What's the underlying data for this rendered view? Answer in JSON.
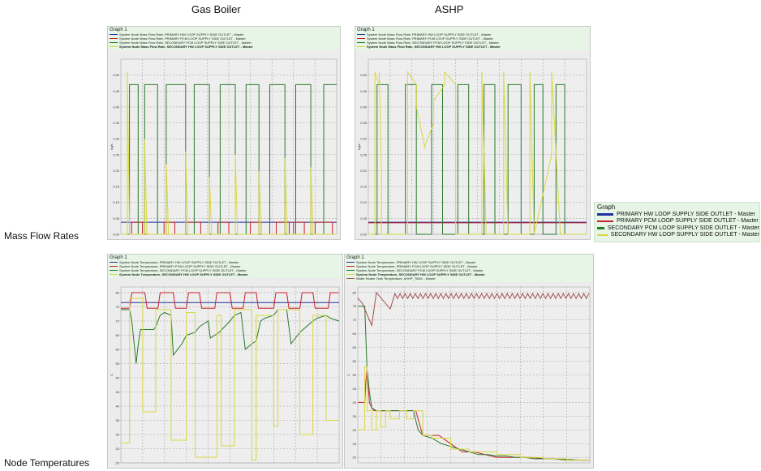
{
  "columns": [
    "Gas Boiler",
    "ASHP"
  ],
  "rows": [
    "Mass Flow Rates",
    "Node Temperatures"
  ],
  "legend": {
    "title": "Graph",
    "items": [
      {
        "label": "PRIMARY HW LOOP SUPPLY SIDE OUTLET - Master",
        "color": "#1f2fa0"
      },
      {
        "label": "PRIMARY PCM LOOP SUPPLY SIDE OUTLET - Master",
        "color": "#c8202a"
      },
      {
        "label": "SECONDARY PCM LOOP SUPPLY SIDE OUTLET - Master",
        "color": "#2a7a2a"
      },
      {
        "label": "SECONDARY HW LOOP SUPPLY SIDE OUTLET - Master",
        "color": "#d8d840"
      }
    ]
  },
  "panels": [
    {
      "title": "Graph 1",
      "legend": [
        "System Node Mass Flow Rate, PRIMARY HW LOOP SUPPLY SIDE OUTLET - Master",
        "System Node Mass Flow Rate, PRIMARY PCM LOOP SUPPLY SIDE OUTLET - Master",
        "System Node Mass Flow Rate, SECONDARY PCM LOOP SUPPLY SIDE OUTLET - Master",
        "System Node Mass Flow Rate, SECONDARY HW LOOP SUPPLY SIDE OUTLET - Master"
      ]
    },
    {
      "title": "Graph 1",
      "legend": [
        "System Node Mass Flow Rate, PRIMARY HW LOOP SUPPLY SIDE OUTLET - Master",
        "System Node Mass Flow Rate, PRIMARY PCM LOOP SUPPLY SIDE OUTLET - Master",
        "System Node Mass Flow Rate, SECONDARY PCM LOOP SUPPLY SIDE OUTLET - Master",
        "System Node Mass Flow Rate, SECONDARY HW LOOP SUPPLY SIDE OUTLET - Master"
      ]
    },
    {
      "title": "Graph 1",
      "legend": [
        "System Node Temperature, PRIMARY HW LOOP SUPPLY SIDE OUTLET - Master",
        "System Node Temperature, PRIMARY PCM LOOP SUPPLY SIDE OUTLET - Master",
        "System Node Temperature, SECONDARY PCM LOOP SUPPLY SIDE OUTLET - Master",
        "System Node Temperature, SECONDARY HW LOOP SUPPLY SIDE OUTLET - Master"
      ]
    },
    {
      "title": "Graph 1",
      "legend": [
        "System Node Temperature, PRIMARY HW LOOP SUPPLY SIDE OUTLET - Master",
        "System Node Temperature, PRIMARY PCM LOOP SUPPLY SIDE OUTLET - Master",
        "System Node Temperature, SECONDARY PCM LOOP SUPPLY SIDE OUTLET - Master",
        "System Node Temperature, SECONDARY HW LOOP SUPPLY SIDE OUTLET - Master",
        "Water Heater Tank Temperature, ASHP_TANK - Master"
      ]
    }
  ],
  "chart_data": [
    {
      "type": "line",
      "panel": "Gas Boiler - Mass Flow Rates",
      "ylabel": "kg/s",
      "ylim": [
        0,
        0.55
      ],
      "yticks": [
        0.0,
        0.05,
        0.1,
        0.15,
        0.2,
        0.25,
        0.3,
        0.35,
        0.4,
        0.45,
        0.5
      ],
      "ytick_labels": [
        "0.00",
        "0.05",
        "0.10",
        "0.15",
        "0.20",
        "0.25",
        "0.30",
        "0.35",
        "0.40",
        "0.45",
        "0.50"
      ],
      "xlim": [
        0,
        100
      ],
      "series": [
        {
          "color": "#1f2fa0",
          "x": [
            0,
            100
          ],
          "y": [
            0.038,
            0.038
          ]
        },
        {
          "color": "#c8202a",
          "x": [
            0,
            5,
            5,
            10,
            10,
            20,
            20,
            25,
            25,
            30,
            30,
            37,
            37,
            45,
            45,
            50,
            50,
            60,
            60,
            65,
            65,
            72,
            72,
            78,
            78,
            80,
            80,
            85,
            85,
            90,
            90,
            98,
            98,
            100
          ],
          "y": [
            0,
            0,
            0.038,
            0.038,
            0,
            0,
            0.038,
            0.038,
            0,
            0,
            0.038,
            0.038,
            0,
            0,
            0.038,
            0.038,
            0,
            0,
            0.038,
            0.038,
            0,
            0,
            0.038,
            0.038,
            0,
            0,
            0.038,
            0.038,
            0,
            0,
            0.038,
            0.038,
            0,
            0
          ]
        },
        {
          "color": "#2a7a2a",
          "x": [
            0,
            4,
            4,
            8,
            8,
            11,
            11,
            17,
            17,
            21,
            21,
            30,
            30,
            34,
            34,
            41,
            41,
            46,
            46,
            53,
            53,
            58,
            58,
            64,
            64,
            69,
            69,
            76,
            76,
            81,
            81,
            88,
            88,
            94,
            94,
            100
          ],
          "y": [
            0,
            0,
            0.47,
            0.47,
            0,
            0,
            0.47,
            0.47,
            0,
            0,
            0.47,
            0.47,
            0,
            0,
            0.47,
            0.47,
            0,
            0,
            0.47,
            0.47,
            0,
            0,
            0.47,
            0.47,
            0,
            0,
            0.47,
            0.47,
            0,
            0,
            0.47,
            0.47,
            0,
            0,
            0.47,
            0.47
          ]
        },
        {
          "color": "#d8d840",
          "x": [
            0,
            3,
            3,
            4,
            4,
            11,
            11,
            12,
            12,
            21,
            21,
            22,
            22,
            30,
            30,
            31,
            31,
            41,
            41,
            42,
            42,
            53,
            53,
            54,
            54,
            64,
            64,
            65,
            65,
            76,
            76,
            77,
            77,
            88,
            88,
            89,
            89,
            100
          ],
          "y": [
            0,
            0,
            0.51,
            0.02,
            0,
            0,
            0.3,
            0.02,
            0,
            0,
            0.22,
            0.02,
            0,
            0,
            0.26,
            0.02,
            0,
            0,
            0.18,
            0.02,
            0,
            0,
            0.25,
            0.02,
            0,
            0,
            0.2,
            0.02,
            0,
            0,
            0.24,
            0.02,
            0,
            0,
            0.21,
            0.02,
            0,
            0
          ]
        }
      ]
    },
    {
      "type": "line",
      "panel": "ASHP - Mass Flow Rates",
      "ylabel": "kg/s",
      "ylim": [
        0,
        0.55
      ],
      "yticks": [
        0.0,
        0.05,
        0.1,
        0.15,
        0.2,
        0.25,
        0.3,
        0.35,
        0.4,
        0.45,
        0.5
      ],
      "ytick_labels": [
        "0.00",
        "0.05",
        "0.10",
        "0.15",
        "0.20",
        "0.25",
        "0.30",
        "0.35",
        "0.40",
        "0.45",
        "0.50"
      ],
      "xlim": [
        0,
        100
      ],
      "series": [
        {
          "color": "#1f2fa0",
          "x": [
            0,
            100
          ],
          "y": [
            0.038,
            0.038
          ]
        },
        {
          "color": "#c8202a",
          "x": [
            0,
            100
          ],
          "y": [
            0.036,
            0.036
          ]
        },
        {
          "color": "#2a7a2a",
          "x": [
            0,
            4,
            4,
            9,
            9,
            17,
            17,
            22,
            22,
            29,
            29,
            34,
            34,
            41,
            41,
            46,
            46,
            53,
            53,
            58,
            58,
            64,
            64,
            70,
            70,
            76,
            76,
            80,
            80,
            86,
            86,
            90,
            90,
            100
          ],
          "y": [
            0,
            0,
            0.47,
            0.47,
            0,
            0,
            0.47,
            0.47,
            0,
            0,
            0.47,
            0.47,
            0,
            0,
            0.47,
            0.47,
            0,
            0,
            0.47,
            0.47,
            0,
            0,
            0.47,
            0.47,
            0,
            0,
            0.47,
            0.47,
            0,
            0,
            0.47,
            0.47,
            0,
            0
          ]
        },
        {
          "color": "#d8d840",
          "x": [
            0,
            3,
            3,
            5,
            5,
            6,
            6,
            18,
            18,
            22,
            22,
            26,
            26,
            30,
            30,
            35,
            35,
            40,
            40,
            52,
            52,
            54,
            54,
            62,
            62,
            64,
            64,
            74,
            74,
            76,
            76,
            84,
            84,
            88,
            88,
            100
          ],
          "y": [
            0,
            0,
            0.51,
            0.47,
            0.51,
            0.2,
            0,
            0,
            0.51,
            0.47,
            0.4,
            0.27,
            0.28,
            0.35,
            0.42,
            0.47,
            0.51,
            0.47,
            0,
            0,
            0.51,
            0,
            0,
            0,
            0.51,
            0,
            0,
            0,
            0.51,
            0,
            0,
            0.25,
            0.51,
            0,
            0,
            0
          ]
        }
      ]
    },
    {
      "type": "line",
      "panel": "Gas Boiler - Node Temperatures",
      "ylabel": "C",
      "ylim": [
        20,
        82
      ],
      "yticks": [
        20,
        25,
        30,
        35,
        40,
        45,
        50,
        55,
        60,
        65,
        70,
        75,
        80
      ],
      "ytick_labels": [
        "20",
        "25",
        "30",
        "35",
        "40",
        "45",
        "50",
        "55",
        "60",
        "65",
        "70",
        "75",
        "80"
      ],
      "xlim": [
        0,
        100
      ],
      "series": [
        {
          "color": "#1f2fa0",
          "x": [
            0,
            100
          ],
          "y": [
            76.5,
            76.5
          ]
        },
        {
          "color": "#c8202a",
          "x": [
            0,
            4,
            5,
            11,
            12,
            17,
            18,
            24,
            25,
            30,
            31,
            36,
            37,
            43,
            44,
            50,
            51,
            56,
            57,
            62,
            63,
            70,
            71,
            76,
            77,
            82,
            83,
            88,
            89,
            95,
            96,
            100
          ],
          "y": [
            74.5,
            74.5,
            80,
            80,
            74.5,
            74.5,
            80,
            80,
            74.5,
            74.5,
            80,
            80,
            74.5,
            74.5,
            80,
            80,
            74.5,
            74.5,
            80,
            80,
            74.5,
            74.5,
            80,
            80,
            74.5,
            74.5,
            80,
            80,
            74.5,
            74.5,
            80,
            80
          ]
        },
        {
          "color": "#2a7a2a",
          "x": [
            0,
            4,
            5,
            7,
            8,
            9,
            10,
            15,
            16,
            18,
            20,
            23,
            24,
            28,
            30,
            34,
            36,
            40,
            41,
            43,
            45,
            50,
            52,
            55,
            57,
            60,
            62,
            64,
            66,
            70,
            72,
            76,
            78,
            80,
            82,
            88,
            90,
            94,
            96,
            100
          ],
          "y": [
            74,
            74,
            70,
            55,
            62,
            67,
            67,
            67,
            68,
            72,
            73,
            72,
            58,
            62,
            65,
            66,
            68,
            70,
            64,
            65,
            66,
            70,
            72,
            73,
            60,
            62,
            63,
            70,
            71,
            72,
            74,
            74,
            62,
            64,
            66,
            70,
            71,
            72,
            71,
            70
          ]
        },
        {
          "color": "#d8d840",
          "x": [
            0,
            4,
            4,
            10,
            10,
            16,
            16,
            23,
            23,
            30,
            30,
            34,
            34,
            44,
            44,
            46,
            46,
            52,
            52,
            60,
            60,
            62,
            62,
            70,
            70,
            72,
            72,
            82,
            82,
            88,
            88,
            94,
            94,
            100
          ],
          "y": [
            27,
            27,
            78,
            78,
            38,
            38,
            74,
            74,
            28,
            28,
            73,
            73,
            22,
            22,
            72,
            72,
            26,
            26,
            74,
            74,
            21,
            21,
            72,
            72,
            33,
            33,
            74,
            74,
            30,
            30,
            72,
            72,
            35,
            35
          ]
        }
      ]
    },
    {
      "type": "line",
      "panel": "ASHP - Node Temperatures",
      "ylabel": "C",
      "ylim": [
        18,
        82
      ],
      "yticks": [
        20,
        25,
        30,
        35,
        40,
        45,
        50,
        55,
        60,
        65,
        70,
        75,
        80
      ],
      "ytick_labels": [
        "20",
        "25",
        "30",
        "35",
        "40",
        "45",
        "50",
        "55",
        "60",
        "65",
        "70",
        "75",
        "80"
      ],
      "xlim": [
        0,
        100
      ],
      "series": [
        {
          "color": "#c8202a",
          "x": [
            0,
            3,
            3.5,
            4,
            5,
            6,
            7,
            8,
            10,
            12,
            15,
            20,
            25,
            28,
            30,
            35,
            40,
            45,
            50,
            55,
            60,
            65,
            70,
            75,
            80,
            85,
            90,
            95,
            100
          ],
          "y": [
            40,
            40,
            48,
            52,
            40,
            38,
            37,
            37,
            37,
            37,
            37,
            37,
            37,
            28,
            28,
            28,
            25,
            22,
            22,
            21,
            20,
            20,
            20,
            20,
            19.5,
            19.5,
            19,
            19,
            19
          ]
        },
        {
          "color": "#2a7a2a",
          "x": [
            0,
            3,
            4,
            5,
            6,
            8,
            10,
            15,
            20,
            24,
            26,
            28,
            32,
            36,
            40,
            44,
            48,
            52,
            56,
            60,
            64,
            68,
            72,
            76,
            80,
            84,
            88,
            92,
            96,
            100
          ],
          "y": [
            75,
            75,
            52,
            44,
            38,
            37,
            37,
            37,
            37,
            37,
            30,
            28,
            27,
            25,
            24,
            23,
            22,
            21,
            21,
            20.5,
            20.5,
            20,
            20,
            19.5,
            19.5,
            19.5,
            19.2,
            19.2,
            19,
            19
          ]
        },
        {
          "color": "#d8d840",
          "x": [
            0,
            3,
            3,
            4,
            4,
            6,
            6,
            8,
            8,
            10,
            10,
            12,
            12,
            14,
            14,
            18,
            18,
            21,
            21,
            24,
            24,
            28,
            28,
            32,
            32,
            40,
            40,
            48,
            48,
            60,
            60,
            70,
            70,
            80,
            80,
            90,
            90,
            100
          ],
          "y": [
            30,
            30,
            53,
            53,
            37,
            37,
            30,
            30,
            37,
            37,
            31,
            31,
            37,
            37,
            34,
            34,
            37,
            37,
            34,
            34,
            37,
            37,
            28,
            28,
            27,
            27,
            23,
            23,
            22,
            22,
            21,
            21,
            20,
            20,
            19.5,
            19.5,
            19,
            19
          ]
        },
        {
          "color": "#a05050",
          "sawtooth": true,
          "x": [
            0,
            2,
            4,
            6,
            8,
            10,
            12,
            14,
            16,
            100
          ],
          "y": [
            78,
            76,
            72,
            68,
            80,
            78,
            76,
            74,
            79,
            79
          ]
        }
      ]
    }
  ]
}
